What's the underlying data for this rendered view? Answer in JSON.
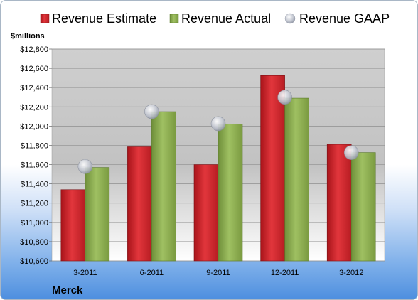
{
  "chart_data": {
    "type": "bar",
    "categories": [
      "3-2011",
      "6-2011",
      "9-2011",
      "12-2011",
      "3-2012"
    ],
    "series": [
      {
        "name": "Revenue Estimate",
        "values": [
          11340,
          11785,
          11600,
          12525,
          11810
        ],
        "color": "#d0282f"
      },
      {
        "name": "Revenue Actual",
        "values": [
          11570,
          12150,
          12020,
          12290,
          11725
        ],
        "color": "#8db052"
      },
      {
        "name": "Revenue GAAP",
        "values": [
          11580,
          12150,
          12025,
          12300,
          11725
        ],
        "color": "#c9ccd6"
      }
    ],
    "ylabel": "$millions",
    "ylim": [
      10600,
      12800
    ],
    "yticks": [
      "$10,600",
      "$10,800",
      "$11,000",
      "$11,200",
      "$11,400",
      "$11,600",
      "$11,800",
      "$12,000",
      "$12,200",
      "$12,400",
      "$12,600",
      "$12,800"
    ],
    "ytick_values": [
      10600,
      10800,
      11000,
      11200,
      11400,
      11600,
      11800,
      12000,
      12200,
      12400,
      12600,
      12800
    ],
    "grid": true,
    "legend_position": "top",
    "company": "Merck"
  }
}
